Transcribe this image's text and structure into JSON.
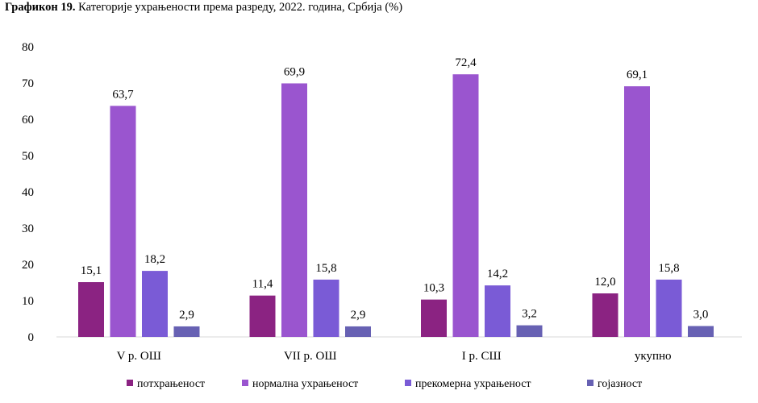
{
  "title": {
    "prefix": "Графикон 19.",
    "text": "Категорије ухрањености према разреду, 2022. година, Србија (%)"
  },
  "chart_data": {
    "type": "bar",
    "categories": [
      "V р. ОШ",
      "VII р. ОШ",
      "I р. СШ",
      "укупно"
    ],
    "series": [
      {
        "name": "потхрањеност",
        "color": "#8b2382",
        "values": [
          15.1,
          11.4,
          10.3,
          12.0
        ],
        "labels": [
          "15,1",
          "11,4",
          "10,3",
          "12,0"
        ]
      },
      {
        "name": "нормална ухрањеност",
        "color": "#9a55cf",
        "values": [
          63.7,
          69.9,
          72.4,
          69.1
        ],
        "labels": [
          "63,7",
          "69,9",
          "72,4",
          "69,1"
        ]
      },
      {
        "name": "прекомерна ухрањеност",
        "color": "#7a5bd6",
        "values": [
          18.2,
          15.8,
          14.2,
          15.8
        ],
        "labels": [
          "18,2",
          "15,8",
          "14,2",
          "15,8"
        ]
      },
      {
        "name": "гојазност",
        "color": "#6761b3",
        "values": [
          2.9,
          2.9,
          3.2,
          3.0
        ],
        "labels": [
          "2,9",
          "2,9",
          "3,2",
          "3,0"
        ]
      }
    ],
    "ylim": [
      0,
      80
    ],
    "yticks": [
      "0",
      "10",
      "20",
      "30",
      "40",
      "50",
      "60",
      "70",
      "80"
    ],
    "legend": "bottom",
    "grid": false
  }
}
